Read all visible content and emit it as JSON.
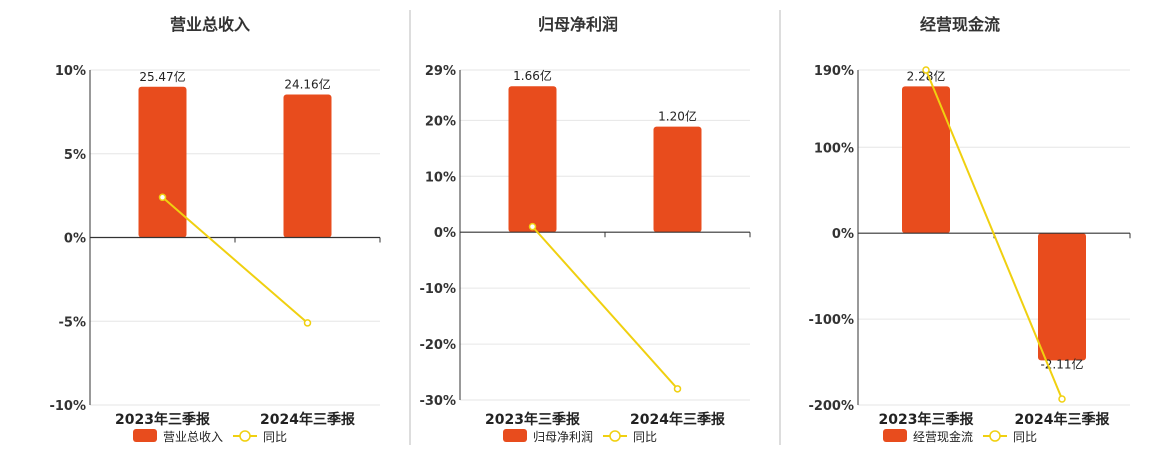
{
  "chart_data": [
    {
      "type": "bar",
      "title": "营业总收入",
      "categories": [
        "2023年三季报",
        "2024年三季报"
      ],
      "bar_series": {
        "name": "营业总收入",
        "values": [
          25.47,
          24.16
        ],
        "labels": [
          "25.47亿",
          "24.16亿"
        ]
      },
      "line_series": {
        "name": "同比",
        "values": [
          2.4,
          -5.1
        ]
      },
      "y_ticks": [
        "10%",
        "5%",
        "0%",
        "-5%",
        "-10%"
      ],
      "ylim": [
        -10,
        10
      ]
    },
    {
      "type": "bar",
      "title": "归母净利润",
      "categories": [
        "2023年三季报",
        "2024年三季报"
      ],
      "bar_series": {
        "name": "归母净利润",
        "values": [
          1.66,
          1.2
        ],
        "labels": [
          "1.66亿",
          "1.20亿"
        ]
      },
      "line_series": {
        "name": "同比",
        "values": [
          1.0,
          -28.0
        ]
      },
      "y_ticks": [
        "29%",
        "20%",
        "10%",
        "0%",
        "-10%",
        "-20%",
        "-30%"
      ],
      "ylim": [
        -30,
        29
      ]
    },
    {
      "type": "bar",
      "title": "经营现金流",
      "categories": [
        "2023年三季报",
        "2024年三季报"
      ],
      "bar_series": {
        "name": "经营现金流",
        "values": [
          2.28,
          -2.11
        ],
        "labels": [
          "2.28亿",
          "-2.11亿"
        ]
      },
      "line_series": {
        "name": "同比",
        "values": [
          190,
          -193
        ]
      },
      "y_ticks": [
        "190%",
        "100%",
        "0%",
        "-100%",
        "-200%"
      ],
      "ylim": [
        -200,
        190
      ]
    }
  ],
  "colors": {
    "bar": "#e84c1d",
    "line": "#f0d010",
    "axis": "#333333",
    "grid": "#e6e6e6",
    "divider": "#bbbbbb"
  }
}
